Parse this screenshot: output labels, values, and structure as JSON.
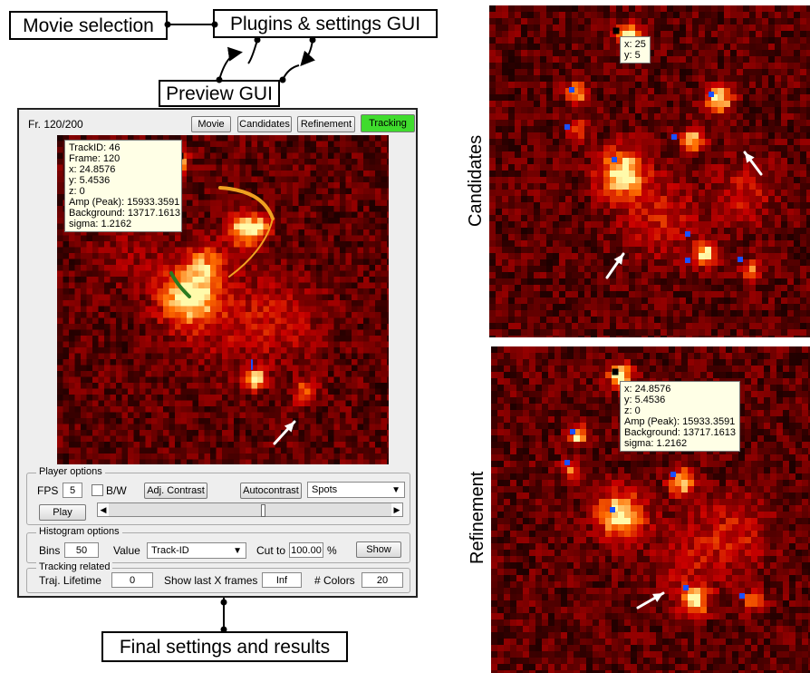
{
  "diagram": {
    "movie_selection": "Movie selection",
    "plugins_gui": "Plugins & settings GUI",
    "preview_gui": "Preview GUI",
    "final_settings": "Final settings and results"
  },
  "preview": {
    "frame_label": "Fr. 120/200",
    "tabs": [
      {
        "label": "Movie",
        "active": false
      },
      {
        "label": "Candidates",
        "active": false
      },
      {
        "label": "Refinement",
        "active": false
      },
      {
        "label": "Tracking",
        "active": true
      }
    ],
    "tooltip": [
      "TrackID: 46",
      "Frame: 120",
      "x: 24.8576",
      "y: 5.4536",
      "z: 0",
      "Amp (Peak): 15933.3591",
      "Background: 13717.1613",
      "sigma: 1.2162"
    ]
  },
  "player": {
    "title": "Player options",
    "fps_label": "FPS",
    "fps_value": "5",
    "bw_label": "B/W",
    "adj_contrast": "Adj. Contrast",
    "autocontrast": "Autocontrast",
    "display_select": "Spots",
    "play": "Play",
    "slider_position": 0.54
  },
  "histogram": {
    "title": "Histogram options",
    "bins_label": "Bins",
    "bins_value": "50",
    "value_label": "Value",
    "value_select": "Track-ID",
    "cut_to_label": "Cut to",
    "cut_to_value": "100.00",
    "percent": "%",
    "show": "Show"
  },
  "tracking": {
    "title": "Tracking related",
    "lifetime_label": "Traj. Lifetime",
    "lifetime_value": "0",
    "show_last_label": "Show last X frames",
    "show_last_value": "Inf",
    "colors_label": "# Colors",
    "colors_value": "20"
  },
  "candidates_panel": {
    "side_label": "Candidates",
    "tooltip": [
      "x: 25",
      "y: 5"
    ]
  },
  "refinement_panel": {
    "side_label": "Refinement",
    "tooltip": [
      "x: 24.8576",
      "y: 5.4536",
      "z: 0",
      "Amp (Peak): 15933.3591",
      "Background: 13717.1613",
      "sigma: 1.2162"
    ]
  },
  "colors": {
    "heat_background": "#1e0000",
    "active_tab": "#3fdc2d",
    "tooltip_bg": "#ffffe6",
    "candidate_marker": "#1a4fff",
    "track_orange": "#f0a020",
    "track_green": "#2a7a20"
  },
  "icons": [
    "arrow-icon",
    "dropdown-arrow-icon",
    "slider-arrow-icon"
  ]
}
